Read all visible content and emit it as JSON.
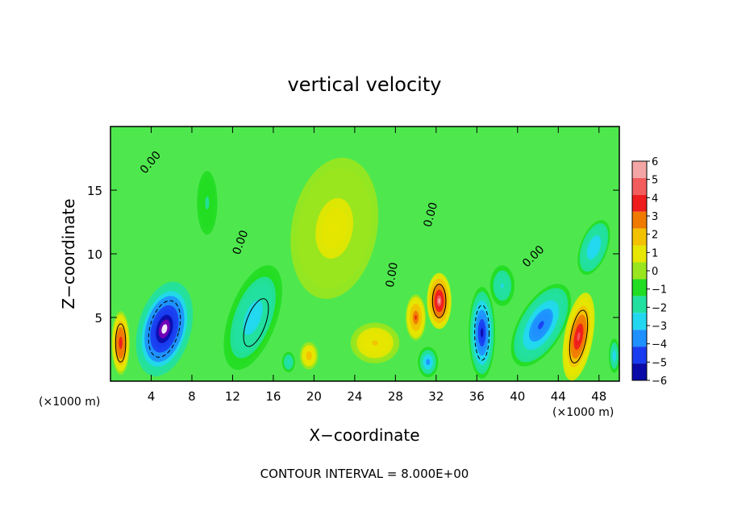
{
  "chart_data": {
    "type": "heatmap",
    "title": "vertical velocity",
    "xlabel": "X−coordinate",
    "ylabel": "Z−coordinate",
    "x_unit_left": "(×1000 m)",
    "x_unit_right": "(×1000 m)",
    "footer": "CONTOUR INTERVAL = 8.000E+00",
    "xlim": [
      0,
      50
    ],
    "ylim": [
      0,
      20
    ],
    "x_ticks": [
      4,
      8,
      12,
      16,
      20,
      24,
      28,
      32,
      36,
      40,
      44,
      48
    ],
    "x_tick_labels": [
      "4",
      "8",
      "12",
      "16",
      "20",
      "24",
      "28",
      "32",
      "36",
      "40",
      "44",
      "48"
    ],
    "y_ticks": [
      5,
      10,
      15
    ],
    "y_tick_labels": [
      "5",
      "10",
      "15"
    ],
    "colorbar": {
      "levels": [
        6,
        5,
        4,
        3,
        2,
        1,
        0,
        -1,
        -2,
        -3,
        -4,
        -5,
        -6
      ],
      "labels": [
        "6",
        "5",
        "4",
        "3",
        "2",
        "1",
        "0",
        "−1",
        "−2",
        "−3",
        "−4",
        "−5",
        "−6"
      ],
      "colors": [
        "#f4a6a6",
        "#f25c5c",
        "#ee1c1c",
        "#f07a00",
        "#f2c200",
        "#e6e600",
        "#9ae61e",
        "#22dd22",
        "#22e0a0",
        "#22d8f0",
        "#1e90ff",
        "#1a3cf0",
        "#0a0aa8",
        "#7a00b8"
      ]
    },
    "background_color": "#4ee84e",
    "contour_labels": [
      {
        "text": "0.00",
        "x": 4.2,
        "z": 17.0,
        "rot": -50
      },
      {
        "text": "0.00",
        "x": 13.1,
        "z": 10.8,
        "rot": -70
      },
      {
        "text": "0.00",
        "x": 31.8,
        "z": 13.0,
        "rot": -75
      },
      {
        "text": "0.00",
        "x": 41.8,
        "z": 9.6,
        "rot": -45
      },
      {
        "text": "0.00",
        "x": 28.0,
        "z": 8.3,
        "rot": -80
      }
    ],
    "features": [
      {
        "x": 5.3,
        "z": 4.1,
        "rx": 2.6,
        "ry": 3.8,
        "a": -5.0,
        "rot": 15
      },
      {
        "x": 14.3,
        "z": 4.6,
        "rx": 1.7,
        "ry": 3.3,
        "a": 5.0,
        "rot": 20
      },
      {
        "x": 14.0,
        "z": 5.0,
        "rx": 2.6,
        "ry": 4.8,
        "a": -2.0,
        "rot": 20
      },
      {
        "x": 36.5,
        "z": 3.8,
        "rx": 1.3,
        "ry": 3.6,
        "a": -4.0,
        "rot": 0
      },
      {
        "x": 42.3,
        "z": 4.4,
        "rx": 2.2,
        "ry": 3.6,
        "a": -3.2,
        "rot": 30
      },
      {
        "x": 46.0,
        "z": 3.5,
        "rx": 1.4,
        "ry": 3.5,
        "a": 4.0,
        "rot": 10
      },
      {
        "x": 32.3,
        "z": 6.3,
        "rx": 1.2,
        "ry": 2.2,
        "a": 4.5,
        "rot": 0
      },
      {
        "x": 30.0,
        "z": 5.0,
        "rx": 1.0,
        "ry": 1.8,
        "a": 3.0,
        "rot": 0
      },
      {
        "x": 1.0,
        "z": 3.0,
        "rx": 0.9,
        "ry": 2.5,
        "a": 3.5,
        "rot": 0
      },
      {
        "x": 47.5,
        "z": 10.5,
        "rx": 1.5,
        "ry": 2.5,
        "a": -2.2,
        "rot": 20
      },
      {
        "x": 31.2,
        "z": 1.5,
        "rx": 1.0,
        "ry": 1.2,
        "a": -2.5,
        "rot": 0
      },
      {
        "x": 22.0,
        "z": 12.0,
        "rx": 6.0,
        "ry": 8.0,
        "a": 1.0,
        "rot": 10
      },
      {
        "x": 26.0,
        "z": 3.0,
        "rx": 3.0,
        "ry": 2.0,
        "a": 1.5,
        "rot": 0
      },
      {
        "x": 19.5,
        "z": 2.0,
        "rx": 1.0,
        "ry": 1.2,
        "a": 2.0,
        "rot": 0
      },
      {
        "x": 9.5,
        "z": 14.0,
        "rx": 2.0,
        "ry": 5.0,
        "a": -0.8,
        "rot": 0
      },
      {
        "x": 17.5,
        "z": 1.5,
        "rx": 0.8,
        "ry": 1.0,
        "a": -1.5,
        "rot": 0
      },
      {
        "x": 49.5,
        "z": 2.0,
        "rx": 0.6,
        "ry": 1.5,
        "a": -2.0,
        "rot": 0
      },
      {
        "x": 38.5,
        "z": 7.5,
        "rx": 1.5,
        "ry": 2.0,
        "a": -1.5,
        "rot": 0
      }
    ]
  }
}
